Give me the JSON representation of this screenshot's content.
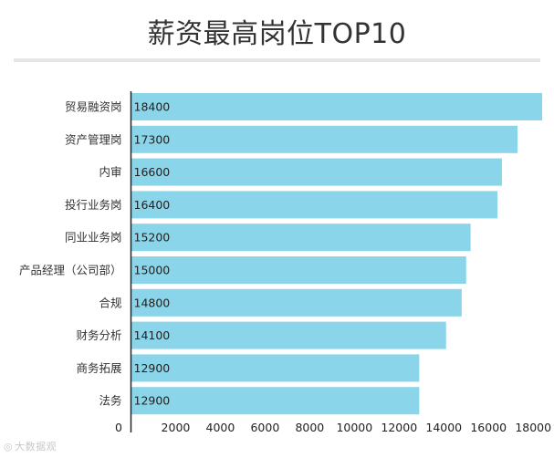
{
  "page_title": "薪资最高岗位TOP10",
  "watermark": "大数据观",
  "chart_data": {
    "type": "bar",
    "orientation": "horizontal",
    "title": "薪资最高岗位TOP10",
    "xlabel": "",
    "ylabel": "",
    "categories": [
      "贸易融资岗",
      "资产管理岗",
      "内审",
      "投行业务岗",
      "同业业务岗",
      "产品经理（公司部）",
      "合规",
      "财务分析",
      "商务拓展",
      "法务"
    ],
    "values": [
      18400,
      17300,
      16600,
      16400,
      15200,
      15000,
      14800,
      14100,
      12900,
      12900
    ],
    "xlim": [
      0,
      18400
    ],
    "x_ticks": [
      0,
      2000,
      4000,
      6000,
      8000,
      10000,
      12000,
      14000,
      16000,
      18000
    ],
    "grid": false,
    "data_labels": "inside-left",
    "bar_color": "#8ad5ea",
    "axis_color": "#222222"
  }
}
